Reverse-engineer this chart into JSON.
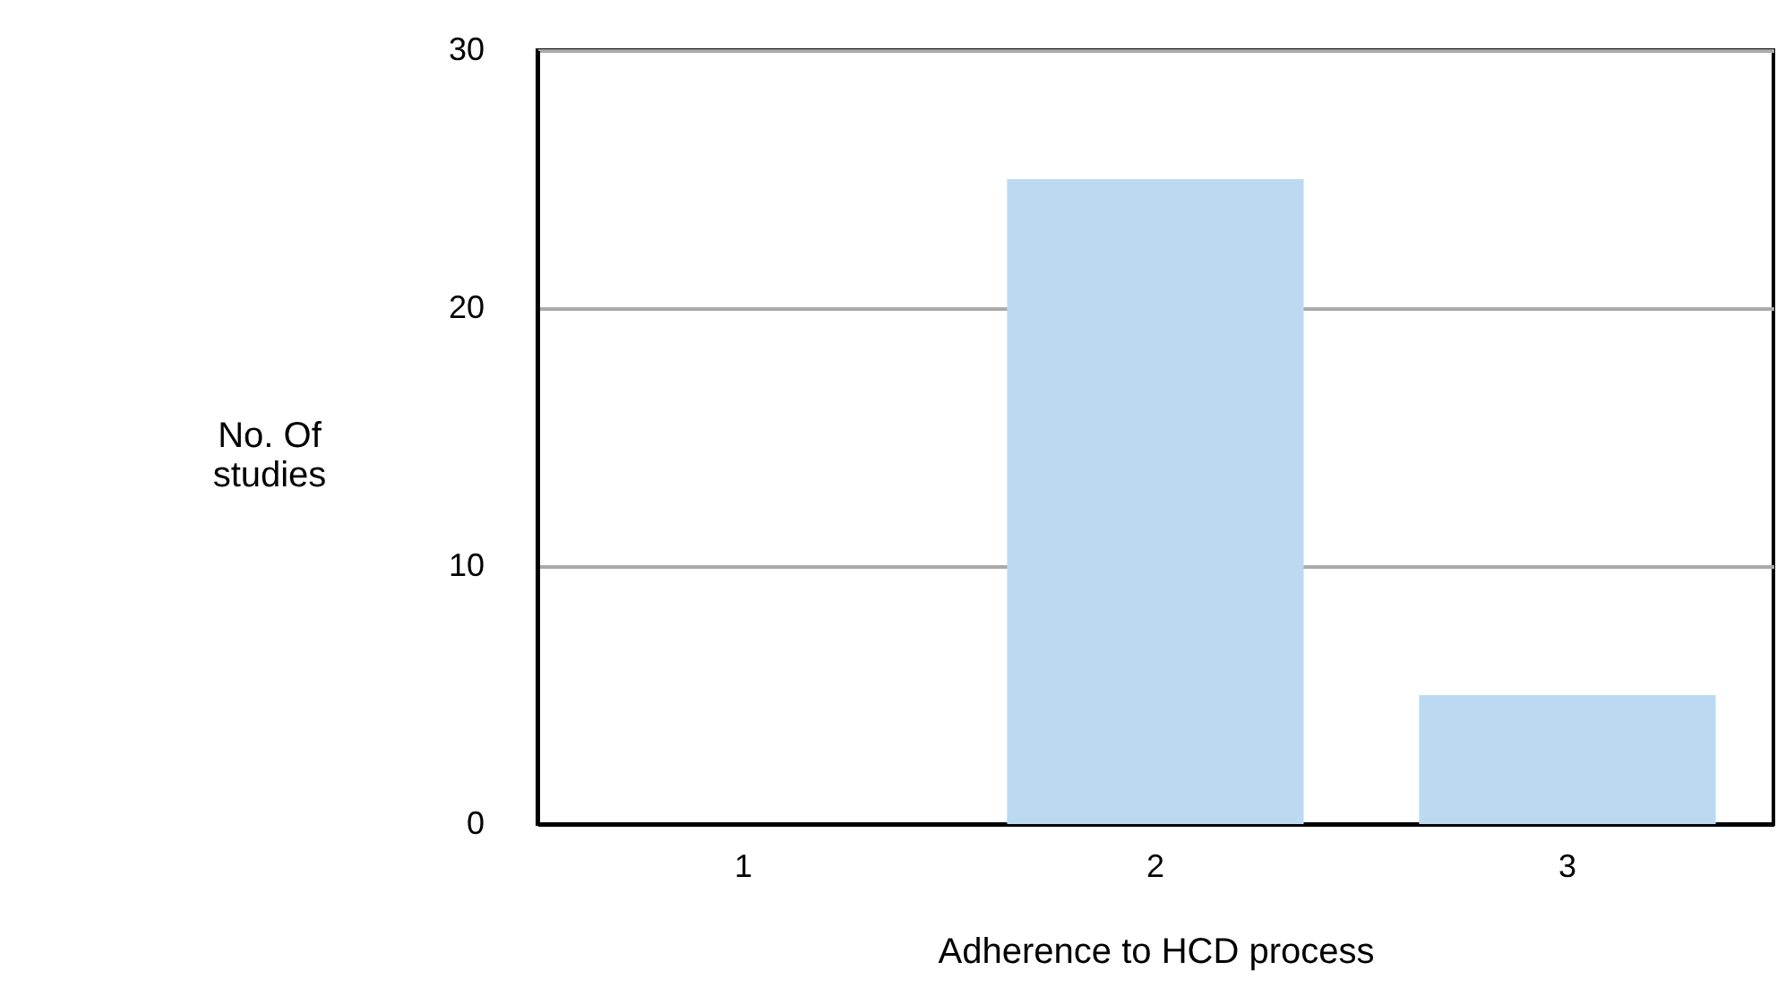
{
  "chart_data": {
    "type": "bar",
    "categories": [
      "1",
      "2",
      "3"
    ],
    "values": [
      0,
      25,
      5
    ],
    "color": "#bbdaf2",
    "xlabel": "Adherence to HCD process",
    "ylabel": "No. Of studies",
    "ylim": [
      0,
      30
    ],
    "yticks": [
      0,
      10,
      20,
      30
    ],
    "grid": "y"
  }
}
